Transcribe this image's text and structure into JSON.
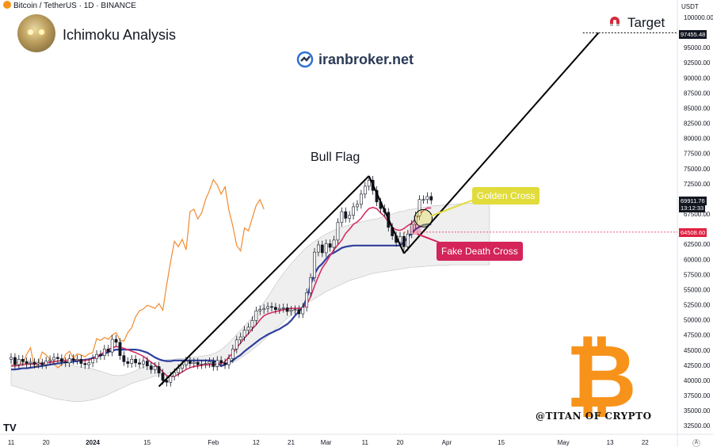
{
  "header": {
    "symbol_line": "Bitcoin / TetherUS · 1D · BINANCE",
    "title": "Ichimoku Analysis",
    "brand": "iranbroker.net",
    "watermark": "@TITAN OF CRYPTO",
    "btc_symbol": "₿",
    "tv_logo": "TV"
  },
  "annotations": {
    "bull_flag": "Bull Flag",
    "target": "Target",
    "golden_cross": "Golden Cross",
    "fake_death_cross": "Fake Death Cross"
  },
  "price_axis": {
    "currency": "USDT",
    "current_price": "69911.76",
    "countdown": "13:12:33",
    "target_price": "97455.48",
    "level_price": "64508.60",
    "auto_label": "A"
  },
  "colors": {
    "up_candle": "#ffffff",
    "down_candle": "#131722",
    "tenkan": "#d62f63",
    "kijun": "#2f3f9e",
    "chikou": "#f28a2e",
    "cloud_fill": "#e4e4e4",
    "flag_fill": "#9fd8ec",
    "target_line": "#000000",
    "level_line": "#e02040",
    "golden": "#e1dc3b",
    "fake_death": "#d4245a",
    "btc": "#f7931a"
  },
  "chart_data": {
    "type": "candlestick",
    "symbol": "Bitcoin / TetherUS",
    "timeframe": "1D",
    "exchange": "BINANCE",
    "ylim": [
      31500,
      101500
    ],
    "y_ticks": [
      100000,
      97500,
      95000,
      92500,
      90000,
      87500,
      85000,
      82500,
      80000,
      77500,
      75000,
      72500,
      70000,
      67500,
      65000,
      62500,
      60000,
      57500,
      55000,
      52500,
      50000,
      47500,
      45000,
      42500,
      40000,
      37500,
      35000,
      32500
    ],
    "x_ticks": [
      {
        "label": "11",
        "day": 0
      },
      {
        "label": "20",
        "day": 9
      },
      {
        "label": "2024",
        "day": 21
      },
      {
        "label": "15",
        "day": 35
      },
      {
        "label": "Feb",
        "day": 52
      },
      {
        "label": "12",
        "day": 63
      },
      {
        "label": "21",
        "day": 72
      },
      {
        "label": "Mar",
        "day": 81
      },
      {
        "label": "11",
        "day": 91
      },
      {
        "label": "20",
        "day": 100
      },
      {
        "label": "Apr",
        "day": 112
      },
      {
        "label": "15",
        "day": 126
      },
      {
        "label": "May",
        "day": 142
      },
      {
        "label": "13",
        "day": 154
      },
      {
        "label": "22",
        "day": 163
      }
    ],
    "candles_close": [
      43800,
      42600,
      43500,
      43100,
      42800,
      43000,
      42700,
      42900,
      42600,
      43200,
      43400,
      43800,
      43600,
      43100,
      42900,
      43600,
      43300,
      43500,
      42800,
      42600,
      42900,
      43600,
      44300,
      44100,
      45200,
      44700,
      46800,
      46300,
      44100,
      43100,
      42800,
      43500,
      42900,
      42700,
      43200,
      42400,
      41800,
      42300,
      41200,
      40000,
      39700,
      40700,
      41300,
      42000,
      42600,
      43200,
      42800,
      43000,
      42600,
      42700,
      42800,
      43100,
      42300,
      43300,
      42900,
      42600,
      43600,
      45200,
      46700,
      47200,
      48300,
      48800,
      49900,
      51500,
      51700,
      51900,
      52200,
      52100,
      51700,
      51900,
      52000,
      51400,
      51600,
      51700,
      51000,
      52100,
      54500,
      57000,
      61200,
      62400,
      61100,
      62600,
      62000,
      63200,
      66100,
      67900,
      66800,
      67300,
      68700,
      69100,
      70800,
      72100,
      73100,
      71400,
      69500,
      68400,
      67800,
      65300,
      63900,
      62800,
      63800,
      62100,
      64200,
      65800,
      67200,
      69900,
      69900,
      70400,
      69800
    ],
    "tenkan_sen": [
      42400,
      42400,
      42500,
      42600,
      42700,
      42700,
      42700,
      42800,
      42800,
      42900,
      43000,
      43100,
      43200,
      43300,
      43300,
      43400,
      43400,
      43400,
      43300,
      43300,
      43400,
      43500,
      43900,
      44300,
      44700,
      45100,
      45400,
      45600,
      45500,
      45300,
      45100,
      44800,
      44600,
      44300,
      44000,
      43500,
      43000,
      42600,
      42100,
      41400,
      40800,
      40600,
      40700,
      41000,
      41400,
      41800,
      42100,
      42300,
      42400,
      42500,
      42600,
      42600,
      42600,
      42700,
      42800,
      43100,
      43900,
      44500,
      45400,
      46200,
      47000,
      47700,
      48500,
      49200,
      50000,
      50700,
      51000,
      51200,
      51400,
      51500,
      51700,
      51800,
      51900,
      51900,
      51900,
      52000,
      52600,
      53800,
      55600,
      57200,
      58600,
      59500,
      60600,
      61600,
      62400,
      63200,
      64300,
      65000,
      65800,
      66200,
      66800,
      67700,
      68400,
      68600,
      68400,
      67700,
      67100,
      66200,
      65300,
      64900,
      64800,
      65100,
      65600,
      66000,
      66700,
      67400,
      68100,
      68500,
      68500
    ],
    "kijun_sen": [
      41800,
      41800,
      41900,
      42000,
      42000,
      42100,
      42200,
      42300,
      42400,
      42500,
      42600,
      42700,
      42800,
      42900,
      43000,
      43000,
      43100,
      43200,
      43300,
      43400,
      43500,
      43700,
      43900,
      44100,
      44400,
      44700,
      44900,
      45100,
      45100,
      45100,
      45100,
      45100,
      45100,
      45000,
      44800,
      44600,
      44200,
      43800,
      43500,
      43300,
      43200,
      43200,
      43300,
      43300,
      43300,
      43300,
      43300,
      43300,
      43300,
      43300,
      43300,
      43300,
      43300,
      43000,
      42400,
      42600,
      43000,
      43300,
      43800,
      44200,
      44800,
      45300,
      45800,
      46300,
      46800,
      47200,
      47600,
      47900,
      48200,
      48500,
      48900,
      49300,
      49900,
      50700,
      51400,
      52100,
      53600,
      55800,
      57600,
      58700,
      59300,
      60100,
      60800,
      61100,
      61500,
      61900,
      62100,
      62200,
      62300,
      62300,
      62300,
      62300,
      62300,
      62300,
      62300,
      62300,
      62300,
      62300,
      62300,
      62300,
      62300,
      62900,
      63600,
      64400,
      65000,
      65400,
      65700,
      65800,
      65800
    ],
    "chikou_span": [
      42400,
      42800,
      43100,
      42600,
      44300,
      45400,
      42100,
      42800,
      44700,
      44200,
      43500,
      42800,
      42100,
      42600,
      44300,
      44800,
      43700,
      44400,
      44200,
      43900,
      44400,
      44600,
      46900,
      46600,
      47100,
      46800,
      47500,
      47900,
      46600,
      46500,
      47900,
      48700,
      50500,
      51500,
      51800,
      52400,
      52200,
      51900,
      52700,
      51600,
      55800,
      59600,
      63000,
      62100,
      63300,
      61600,
      67900,
      68300,
      66700,
      67700,
      69900,
      71400,
      73200,
      72300,
      70800,
      72000,
      68100,
      65500,
      62300,
      61400,
      65200,
      64700,
      66800,
      68900,
      69900,
      68300
    ],
    "cloud_top": [
      43600,
      43500,
      43400,
      43400,
      43300,
      43300,
      43200,
      43100,
      43100,
      43000,
      42900,
      42800,
      42700,
      42700,
      42600,
      42500,
      42400,
      42300,
      42200,
      42100,
      42000,
      41900,
      41700,
      41500,
      41300,
      41100,
      40900,
      40800,
      40800,
      40900,
      41100,
      41300,
      41600,
      41900,
      42200,
      42500,
      42700,
      42900,
      43100,
      43300,
      43400,
      43500,
      43500,
      43600,
      43600,
      43700,
      43800,
      43800,
      43900,
      44000,
      44100,
      44200,
      44400,
      44700,
      45100,
      45600,
      46200,
      46900,
      47600,
      48300,
      49000,
      49700,
      50400,
      51200,
      52000,
      52900,
      53800,
      54800,
      55800,
      56800,
      57700,
      58500,
      59300,
      60000,
      60700,
      61400,
      62000,
      62500,
      63000,
      63400,
      63800,
      64200,
      64500,
      64800,
      65100,
      65300,
      65500,
      65700,
      65900,
      66000,
      66200,
      66300,
      66500,
      66600,
      66700,
      66900,
      67100,
      67300,
      67500,
      67700,
      67900,
      68000,
      68200,
      68300,
      68400,
      68500,
      68600,
      68700,
      68800,
      68900,
      68900,
      69000,
      69000,
      69100,
      69100,
      69200,
      69200,
      69200,
      69300,
      69300,
      69300,
      69300,
      69400,
      69400
    ],
    "cloud_bottom": [
      39200,
      39000,
      38800,
      38600,
      38400,
      38200,
      38000,
      37800,
      37600,
      37400,
      37200,
      37000,
      36900,
      36800,
      36700,
      36600,
      36500,
      36500,
      36500,
      36600,
      36700,
      36800,
      37000,
      37200,
      37400,
      37700,
      38000,
      38300,
      38600,
      38900,
      39200,
      39500,
      39700,
      39900,
      40100,
      40300,
      40500,
      40700,
      40800,
      41000,
      41100,
      41300,
      41600,
      41900,
      42100,
      42400,
      42600,
      42800,
      43000,
      42700,
      42500,
      42300,
      42200,
      42200,
      42300,
      42500,
      42700,
      43000,
      43300,
      43700,
      44100,
      44600,
      45100,
      45600,
      46100,
      46700,
      47300,
      47900,
      48500,
      49100,
      49700,
      50300,
      50800,
      51300,
      51800,
      52300,
      52700,
      53100,
      53500,
      53900,
      54300,
      54700,
      55000,
      55300,
      55600,
      55900,
      56200,
      56500,
      56700,
      56900,
      57100,
      57300,
      57500,
      57700,
      57800,
      57900,
      58000,
      58100,
      58200,
      58300,
      58400,
      58500,
      58600,
      58700,
      58700,
      58800,
      58800,
      58900,
      58900,
      59000,
      59000,
      59000,
      59000,
      59100,
      59100,
      59100,
      59100,
      59100,
      59100,
      59100,
      59100,
      59100,
      59100,
      59100
    ],
    "bull_flag_pole": [
      {
        "day": 38,
        "price": 39000
      },
      {
        "day": 92,
        "price": 73800
      }
    ],
    "flag_points": [
      [
        92,
        73800
      ],
      [
        100,
        62200
      ],
      [
        101,
        61000
      ],
      [
        93,
        72400
      ]
    ],
    "target_line": [
      {
        "day": 101,
        "price": 61000
      },
      {
        "day": 151,
        "price": 97455.48
      }
    ],
    "golden_cross": {
      "day": 106,
      "price": 66800
    },
    "fake_death_cross": {
      "day": 104,
      "price": 65000
    },
    "horizontal_levels": [
      64508.6,
      97455.48
    ]
  }
}
